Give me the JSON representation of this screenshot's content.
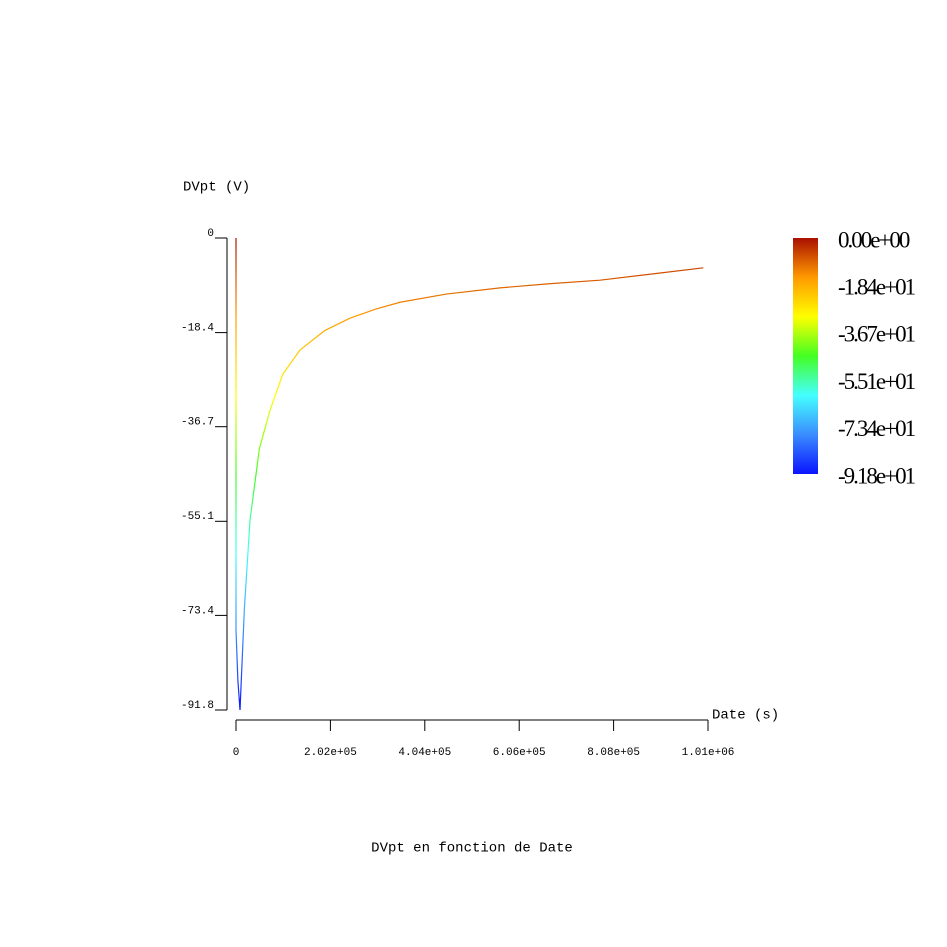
{
  "chart_data": {
    "type": "line",
    "title": "DVpt en fonction de Date",
    "y_label": "DVpt (V)",
    "x_label": "Date (s)",
    "series": [
      {
        "x": [
          0,
          0,
          4000,
          8560,
          18000,
          29960,
          50000,
          72750,
          100000,
          136950,
          190000,
          243940,
          300000,
          350930,
          450000,
          564920,
          670000,
          778900,
          890000,
          1000000
        ],
        "values": [
          0,
          -76.3,
          -86,
          -91.8,
          -72,
          -54.9,
          -41,
          -33.5,
          -26.5,
          -21.8,
          -18,
          -15.6,
          -13.8,
          -12.5,
          -10.9,
          -9.7,
          -8.9,
          -8.2,
          -7.0,
          -5.8
        ]
      }
    ],
    "xlim": [
      0,
      1010000
    ],
    "ylim": [
      -91.8,
      0
    ],
    "xticks": [
      0,
      {
        "value": 202000,
        "label": "2.02e+05"
      },
      {
        "value": 404000,
        "label": "4.04e+05"
      },
      {
        "value": 606000,
        "label": "6.06e+05"
      },
      {
        "value": 808000,
        "label": "8.08e+05"
      },
      {
        "value": 1010000,
        "label": "1.01e+06"
      }
    ],
    "yticks": [
      0,
      -18.4,
      -36.7,
      -55.1,
      -73.4,
      -91.8
    ],
    "colormap": [
      "#0a14ff",
      "#3a8cff",
      "#44ffff",
      "#44ff22",
      "#ffff00",
      "#ff9a00",
      "#aa1000"
    ],
    "colorbar_lim": [
      -91.8,
      0
    ],
    "colorbar_ticks": [
      {
        "value": 0,
        "label": "0.00e+00"
      },
      {
        "value": -18.4,
        "label": "-1.84e+01"
      },
      {
        "value": -36.7,
        "label": "-3.67e+01"
      },
      {
        "value": -55.1,
        "label": "-5.51e+01"
      },
      {
        "value": -73.4,
        "label": "-7.34e+01"
      },
      {
        "value": -91.8,
        "label": "-9.18e+01"
      }
    ]
  }
}
